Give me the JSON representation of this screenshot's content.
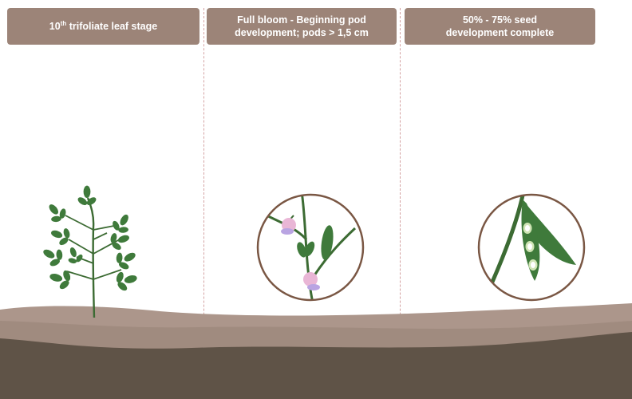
{
  "stages": [
    {
      "label_prefix": "10",
      "label_sup": "th",
      "label_suffix": " trifoliate leaf stage"
    },
    {
      "label_line1": "Full bloom - Beginning pod",
      "label_line2": "development; pods > 1,5 cm"
    },
    {
      "label_line1": "50% - 75% seed",
      "label_line2": "development complete"
    }
  ],
  "colors": {
    "header_bg": "#9c8478",
    "header_text": "#ffffff",
    "divider": "#d4a2a2",
    "soil_top": "#ac968b",
    "soil_mid": "#a28d81",
    "soil_bottom": "#5f5347",
    "leaf": "#3f7a3b",
    "stem": "#3c6b33",
    "flower": "#e9b6d6",
    "circle_border": "#7a5744"
  },
  "icons": [
    "soybean-plant-icon",
    "flower-closeup-icon",
    "pod-closeup-icon"
  ]
}
